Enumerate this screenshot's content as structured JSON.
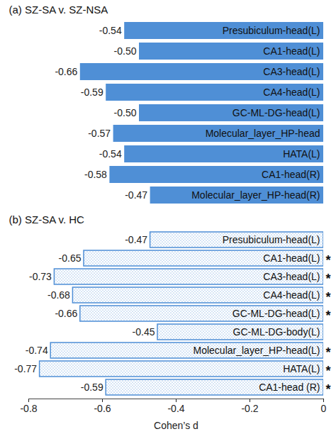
{
  "chart_data": [
    {
      "type": "bar",
      "title": "(a) SZ-SA v. SZ-NSA",
      "orientation": "horizontal",
      "categories": [
        "Presubiculum-head(L)",
        "CA1-head(L)",
        "CA3-head(L)",
        "CA4-head(L)",
        "GC-ML-DG-head(L)",
        "Molecular_layer_HP-head",
        "HATA(L)",
        "CA1-head(R)",
        "Molecular_layer_HP-head(R)"
      ],
      "values": [
        -0.54,
        -0.5,
        -0.66,
        -0.59,
        -0.5,
        -0.57,
        -0.54,
        -0.58,
        -0.47
      ],
      "value_labels": [
        "-0.54",
        "-0.50",
        "-0.66",
        "-0.59",
        "-0.50",
        "-0.57",
        "-0.54",
        "-0.58",
        "-0.47"
      ],
      "data_labels": true,
      "color": "#4f8fd6",
      "xlim": [
        -0.8,
        0
      ],
      "tick_labels": false,
      "grid": false
    },
    {
      "type": "bar",
      "title": "(b) SZ-SA v. HC",
      "orientation": "horizontal",
      "categories": [
        "Presubiculum-head(L)",
        "CA1-head(L)",
        "CA3-head(L)",
        "CA4-head(L)",
        "GC-ML-DG-head(L)",
        "GC-ML-DG-body(L)",
        "Molecular_layer_HP-head(L)",
        "HATA(L)",
        "CA1-head (R)"
      ],
      "values": [
        -0.47,
        -0.65,
        -0.73,
        -0.68,
        -0.66,
        -0.45,
        -0.74,
        -0.77,
        -0.59
      ],
      "value_labels": [
        "-0.47",
        "-0.65",
        "-0.73",
        "-0.68",
        "-0.66",
        "-0.45",
        "-0.74",
        "-0.77",
        "-0.59"
      ],
      "annotations": [
        null,
        "*",
        "*",
        "*",
        "*",
        null,
        "*",
        "*",
        "*"
      ],
      "data_labels": true,
      "color": "#4f8fd6",
      "xlabel": "Cohen’s d",
      "xlim": [
        -0.8,
        0
      ],
      "xticks": [
        -0.8,
        -0.6,
        -0.4,
        -0.2,
        0
      ],
      "grid": false
    }
  ]
}
